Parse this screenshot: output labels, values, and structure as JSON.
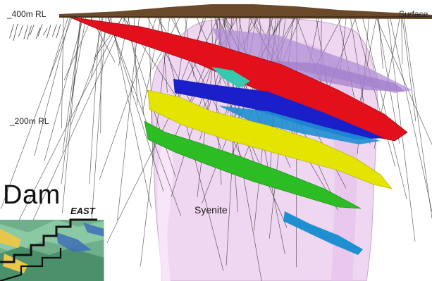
{
  "labels": {
    "rl_400": "_400m RL",
    "rl_200": "_200m RL",
    "surface": "Surface",
    "syenite": "Syenite",
    "dam": "Dam",
    "east": "EAST"
  },
  "colors": {
    "surface": "#6b4a2b",
    "syenite": "#efd6f1",
    "syenite_edge": "#c9a5cc",
    "lode_red": "#e3101b",
    "lode_blue": "#1a1fc9",
    "lode_yellow": "#e4e400",
    "lode_green": "#2bbd23",
    "lode_cyan": "#1e8fd1",
    "lode_teal": "#37c9b0",
    "lode_lavender": "#b28fd6",
    "drillhole": "#333333",
    "inset_bg": "#6fb08b"
  },
  "icons": [
    "drillhole-traces",
    "geology-inset-map"
  ]
}
